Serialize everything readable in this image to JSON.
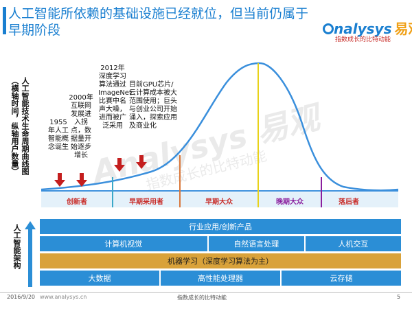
{
  "header": {
    "title": "人工智能所依赖的基础设施已经就位，但当前仍属于早期阶段",
    "logo_en": "nalysys",
    "logo_cn": "易观",
    "tagline": "指数成长的比特动能"
  },
  "lifecycle_chart": {
    "vertical_label": "人工智能技术生命周期曲线图（横轴时间，纵轴用户数量）",
    "annotations": [
      {
        "year_text": "1955年人工智能概念诞生"
      },
      {
        "year_text": "2000年互联网发展进入拐点，数据量开始逐步增长"
      },
      {
        "year_text": "2012年深度学习算法通过ImageNet比赛中名声大噪，进而被广泛采用"
      },
      {
        "year_text": "目前GPU芯片/云计算成本被大范围使用；巨头与创业公司开始涌入，探索应用及商业化"
      }
    ],
    "stages": [
      {
        "label": "创新者",
        "color": "#c9302c"
      },
      {
        "label": "早期采用者",
        "color": "#c9302c"
      },
      {
        "label": "早期大众",
        "color": "#c9302c"
      },
      {
        "label": "晚期大众",
        "color": "#8a1f9e"
      },
      {
        "label": "落后者",
        "color": "#c9302c"
      }
    ],
    "divider_colors": [
      "#3aa8c8",
      "#d9773a",
      "#e8d21a",
      "#8a1f9e"
    ],
    "curve_color": "#3a8fdc",
    "arrow_color": "#c41e1e"
  },
  "architecture": {
    "vertical_label": "人工智能架构",
    "rows": [
      [
        "行业应用/创新产品"
      ],
      [
        "计算机视觉",
        "自然语言处理",
        "人机交互"
      ],
      [
        "机器学习（深度学习算法为主）"
      ],
      [
        "大数据",
        "高性能处理器",
        "云存储"
      ]
    ]
  },
  "footer": {
    "date": "2016/9/20",
    "site": "www.analysys.cn",
    "tagline": "指数成长的比特动能",
    "page": "5"
  },
  "watermark": {
    "main": "Analysys 易观",
    "sub": "指数成长的比特动能"
  }
}
